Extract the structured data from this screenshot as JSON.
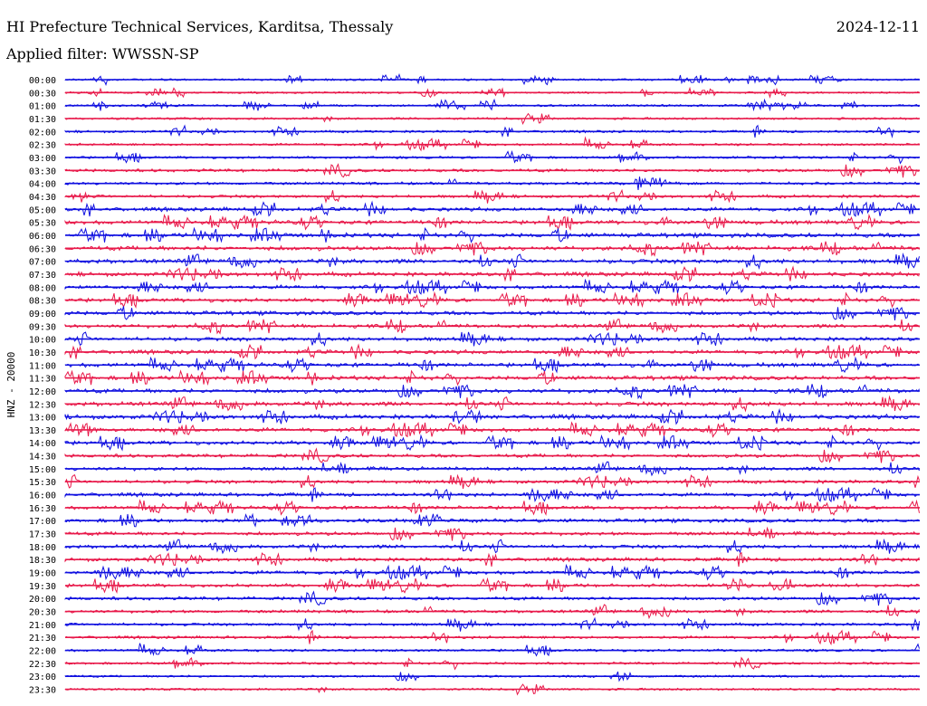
{
  "header": {
    "title": "HI Prefecture Technical Services, Karditsa, Thessaly",
    "date": "2024-12-11",
    "filter": "Applied filter: WWSSN-SP"
  },
  "colors": {
    "trace_a": "#1010e0",
    "trace_b": "#e8194a",
    "background": "#ffffff",
    "text": "#000000"
  },
  "chart_data": {
    "type": "line",
    "title": "HI Prefecture Technical Services, Karditsa, Thessaly",
    "ylabel": "HNZ - 20000",
    "xlabel": "",
    "grid": false,
    "legend": "none",
    "row_labels": [
      "00:00",
      "00:30",
      "01:00",
      "01:30",
      "02:00",
      "02:30",
      "03:00",
      "03:30",
      "04:00",
      "04:30",
      "05:00",
      "05:30",
      "06:00",
      "06:30",
      "07:00",
      "07:30",
      "08:00",
      "08:30",
      "09:00",
      "09:30",
      "10:00",
      "10:30",
      "11:00",
      "11:30",
      "12:00",
      "12:30",
      "13:00",
      "13:30",
      "14:00",
      "14:30",
      "15:00",
      "15:30",
      "16:00",
      "16:30",
      "17:00",
      "17:30",
      "18:00",
      "18:30",
      "19:00",
      "19:30",
      "20:00",
      "20:30",
      "21:00",
      "21:30",
      "22:00",
      "22:30",
      "23:00",
      "23:30"
    ],
    "row_colors": [
      "#1010e0",
      "#e8194a"
    ],
    "activity": [
      0.18,
      0.12,
      0.22,
      0.25,
      0.3,
      0.28,
      0.3,
      0.55,
      0.45,
      0.5,
      0.75,
      0.85,
      0.95,
      1.0,
      0.95,
      0.85,
      0.75,
      0.8,
      0.85,
      0.75,
      0.8,
      0.8,
      0.85,
      0.9,
      0.95,
      0.95,
      0.95,
      0.85,
      0.8,
      0.7,
      0.7,
      0.65,
      0.7,
      0.65,
      0.75,
      0.7,
      0.7,
      0.7,
      0.75,
      0.65,
      0.65,
      0.55,
      0.45,
      0.4,
      0.35,
      0.3,
      0.25,
      0.25
    ]
  }
}
